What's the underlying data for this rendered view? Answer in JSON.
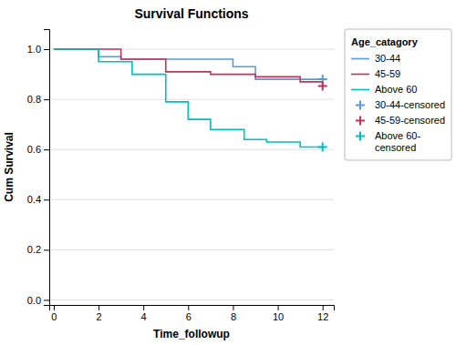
{
  "chart_data": {
    "type": "step",
    "title": "Survival Functions",
    "x_label": "Time_followup",
    "y_label": "Cum Survival",
    "legend_title": "Age_catagory",
    "legend": "right",
    "grid": "y",
    "xlim": [
      -0.2,
      12.5
    ],
    "ylim": [
      -0.02,
      1.08
    ],
    "xticks": [
      0,
      2,
      4,
      6,
      8,
      10,
      12
    ],
    "yticks": [
      {
        "value": 0.0,
        "label": "0.0"
      },
      0.2,
      0.4,
      0.6,
      0.8,
      {
        "value": 1.0,
        "label": "1.0"
      }
    ],
    "series": [
      {
        "name": "30-44",
        "type": "step",
        "color": "#5B9BD5",
        "x": [
          0,
          1.0,
          2.0,
          3.0,
          5.0,
          8.0,
          9.0,
          12.0
        ],
        "values": [
          1.0,
          1.0,
          0.97,
          0.96,
          0.96,
          0.93,
          0.88,
          0.88
        ]
      },
      {
        "name": "45-59",
        "type": "step",
        "color": "#C0335A",
        "x": [
          0,
          2.0,
          3.0,
          5.0,
          7.0,
          9.0,
          11.0,
          12.0
        ],
        "values": [
          1.0,
          1.0,
          0.96,
          0.91,
          0.9,
          0.89,
          0.87,
          0.85
        ]
      },
      {
        "name": "Above 60",
        "type": "step",
        "color": "#00BFBF",
        "x": [
          0,
          1.5,
          2.0,
          3.5,
          5.0,
          6.0,
          7.0,
          8.5,
          9.5,
          11.0,
          12.0
        ],
        "values": [
          1.0,
          1.0,
          0.95,
          0.9,
          0.79,
          0.72,
          0.68,
          0.64,
          0.63,
          0.61,
          0.61
        ]
      },
      {
        "name": "30-44-censored",
        "type": "scatter",
        "marker": "plus",
        "color": "#5B9BD5",
        "x": [
          12.0
        ],
        "values": [
          0.88
        ]
      },
      {
        "name": "45-59-censored",
        "type": "scatter",
        "marker": "plus",
        "color": "#C0335A",
        "x": [
          12.0
        ],
        "values": [
          0.853
        ]
      },
      {
        "name": "Above 60-\ncensored",
        "type": "scatter",
        "marker": "plus",
        "color": "#00BFBF",
        "x": [
          12.0
        ],
        "values": [
          0.61
        ]
      }
    ]
  }
}
